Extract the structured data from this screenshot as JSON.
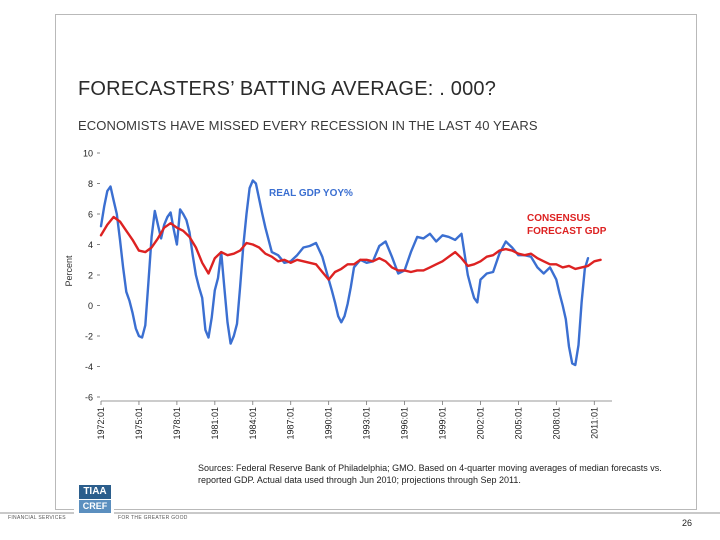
{
  "slide": {
    "title": "FORECASTERS’ BATTING AVERAGE: . 000?",
    "subtitle": "ECONOMISTS HAVE MISSED EVERY RECESSION IN THE LAST 40 YEARS",
    "sources": "Sources: Federal Reserve Bank of Philadelphia; GMO. Based on 4-quarter moving averages of median forecasts vs. reported GDP. Actual data used through Jun 2010; projections through Sep 2011.",
    "page_number": "26",
    "logo": {
      "line1": "TIAA",
      "line2": "CREF",
      "tag_left": "FINANCIAL SERVICES",
      "tag_right": "FOR THE GREATER GOOD"
    }
  },
  "chart_data": {
    "type": "line",
    "ylabel": "Percent",
    "ylim": [
      -6,
      10
    ],
    "y_ticks": [
      "10",
      "8",
      "6",
      "4",
      "2",
      "0",
      "-2",
      "-4",
      "-6"
    ],
    "y_tick_values": [
      10,
      8,
      6,
      4,
      2,
      0,
      -2,
      -4,
      -6
    ],
    "x_tick_labels": [
      "1972:01",
      "1975:01",
      "1978:01",
      "1981:01",
      "1984:01",
      "1987:01",
      "1990:01",
      "1993:01",
      "1996:01",
      "1999:01",
      "2002:01",
      "2005:01",
      "2008:01",
      "2011:01"
    ],
    "x_tick_values": [
      1972,
      1975,
      1978,
      1981,
      1984,
      1987,
      1990,
      1993,
      1996,
      1999,
      2002,
      2005,
      2008,
      2011
    ],
    "xlim": [
      1972,
      2012.4
    ],
    "grid": false,
    "colors": {
      "actual": "#3b6fd1",
      "forecast": "#dd2222"
    },
    "series": [
      {
        "name": "REAL GDP YOY%",
        "label_lines": [
          "REAL GDP YOY%"
        ],
        "color": "#3b6fd1",
        "x": [
          1972.0,
          1972.25,
          1972.5,
          1972.75,
          1973.0,
          1973.25,
          1973.5,
          1973.75,
          1974.0,
          1974.25,
          1974.5,
          1974.75,
          1975.0,
          1975.25,
          1975.5,
          1975.75,
          1976.0,
          1976.25,
          1976.5,
          1976.75,
          1977.0,
          1977.25,
          1977.5,
          1977.75,
          1978.0,
          1978.25,
          1978.5,
          1978.75,
          1979.0,
          1979.25,
          1979.5,
          1979.75,
          1980.0,
          1980.25,
          1980.5,
          1980.75,
          1981.0,
          1981.25,
          1981.5,
          1981.75,
          1982.0,
          1982.25,
          1982.5,
          1982.75,
          1983.0,
          1983.25,
          1983.5,
          1983.75,
          1984.0,
          1984.25,
          1984.5,
          1984.75,
          1985.0,
          1985.5,
          1986.0,
          1986.5,
          1987.0,
          1987.5,
          1988.0,
          1988.5,
          1989.0,
          1989.5,
          1990.0,
          1990.25,
          1990.5,
          1990.75,
          1991.0,
          1991.25,
          1991.5,
          1991.75,
          1992.0,
          1992.5,
          1993.0,
          1993.5,
          1994.0,
          1994.5,
          1995.0,
          1995.5,
          1996.0,
          1996.5,
          1997.0,
          1997.5,
          1998.0,
          1998.5,
          1999.0,
          1999.5,
          2000.0,
          2000.5,
          2001.0,
          2001.25,
          2001.5,
          2001.75,
          2002.0,
          2002.5,
          2003.0,
          2003.5,
          2004.0,
          2004.5,
          2005.0,
          2005.5,
          2006.0,
          2006.5,
          2007.0,
          2007.5,
          2008.0,
          2008.25,
          2008.5,
          2008.75,
          2009.0,
          2009.25,
          2009.5,
          2009.75,
          2010.0,
          2010.25,
          2010.5
        ],
        "values": [
          5.2,
          6.5,
          7.5,
          7.8,
          6.9,
          6.0,
          4.3,
          2.5,
          0.9,
          0.3,
          -0.5,
          -1.5,
          -2.0,
          -2.1,
          -1.3,
          1.5,
          4.5,
          6.2,
          5.3,
          4.4,
          5.3,
          5.8,
          6.1,
          5.0,
          4.0,
          6.3,
          6.0,
          5.6,
          4.8,
          3.3,
          2.0,
          1.2,
          0.5,
          -1.6,
          -2.1,
          -0.8,
          1.0,
          1.8,
          3.5,
          1.2,
          -1.1,
          -2.5,
          -2.0,
          -1.2,
          1.2,
          3.9,
          6.0,
          7.7,
          8.2,
          8.0,
          7.0,
          6.0,
          5.1,
          3.5,
          3.3,
          2.8,
          2.9,
          3.3,
          3.8,
          3.9,
          4.1,
          3.2,
          1.7,
          1.0,
          0.2,
          -0.7,
          -1.1,
          -0.7,
          0.1,
          1.2,
          2.5,
          3.0,
          2.8,
          2.9,
          3.9,
          4.2,
          3.2,
          2.1,
          2.3,
          3.5,
          4.5,
          4.4,
          4.7,
          4.2,
          4.6,
          4.5,
          4.3,
          4.7,
          2.0,
          1.2,
          0.5,
          0.2,
          1.7,
          2.1,
          2.2,
          3.4,
          4.2,
          3.8,
          3.3,
          3.3,
          3.2,
          2.5,
          2.1,
          2.5,
          1.7,
          0.8,
          0.0,
          -0.9,
          -2.7,
          -3.8,
          -3.9,
          -2.6,
          0.2,
          2.4,
          3.1
        ]
      },
      {
        "name": "CONSENSUS FORECAST GDP",
        "label_lines": [
          "CONSENSUS",
          "FORECAST GDP"
        ],
        "color": "#dd2222",
        "x": [
          1972.0,
          1972.5,
          1973.0,
          1973.5,
          1974.0,
          1974.5,
          1975.0,
          1975.5,
          1976.0,
          1976.5,
          1977.0,
          1977.5,
          1978.0,
          1978.5,
          1979.0,
          1979.5,
          1980.0,
          1980.5,
          1981.0,
          1981.5,
          1982.0,
          1982.5,
          1983.0,
          1983.5,
          1984.0,
          1984.5,
          1985.0,
          1985.5,
          1986.0,
          1986.5,
          1987.0,
          1987.5,
          1988.0,
          1988.5,
          1989.0,
          1989.5,
          1990.0,
          1990.5,
          1991.0,
          1991.5,
          1992.0,
          1992.5,
          1993.0,
          1993.5,
          1994.0,
          1994.5,
          1995.0,
          1995.5,
          1996.0,
          1996.5,
          1997.0,
          1997.5,
          1998.0,
          1998.5,
          1999.0,
          1999.5,
          2000.0,
          2000.5,
          2001.0,
          2001.5,
          2002.0,
          2002.5,
          2003.0,
          2003.5,
          2004.0,
          2004.5,
          2005.0,
          2005.5,
          2006.0,
          2006.5,
          2007.0,
          2007.5,
          2008.0,
          2008.5,
          2009.0,
          2009.5,
          2010.0,
          2010.5,
          2011.0,
          2011.5
        ],
        "values": [
          4.6,
          5.3,
          5.8,
          5.5,
          4.9,
          4.3,
          3.6,
          3.5,
          3.8,
          4.4,
          5.1,
          5.4,
          5.1,
          4.9,
          4.5,
          3.8,
          2.8,
          2.1,
          3.1,
          3.5,
          3.3,
          3.4,
          3.6,
          4.1,
          4.0,
          3.8,
          3.4,
          3.2,
          2.9,
          3.0,
          2.8,
          3.0,
          2.9,
          2.8,
          2.7,
          2.2,
          1.7,
          2.2,
          2.4,
          2.7,
          2.7,
          3.0,
          3.0,
          2.9,
          3.1,
          2.9,
          2.5,
          2.3,
          2.3,
          2.2,
          2.3,
          2.3,
          2.5,
          2.7,
          2.9,
          3.2,
          3.5,
          3.1,
          2.6,
          2.7,
          2.9,
          3.2,
          3.3,
          3.6,
          3.7,
          3.6,
          3.4,
          3.3,
          3.4,
          3.1,
          2.9,
          2.7,
          2.7,
          2.5,
          2.6,
          2.4,
          2.5,
          2.6,
          2.9,
          3.0
        ]
      }
    ]
  }
}
